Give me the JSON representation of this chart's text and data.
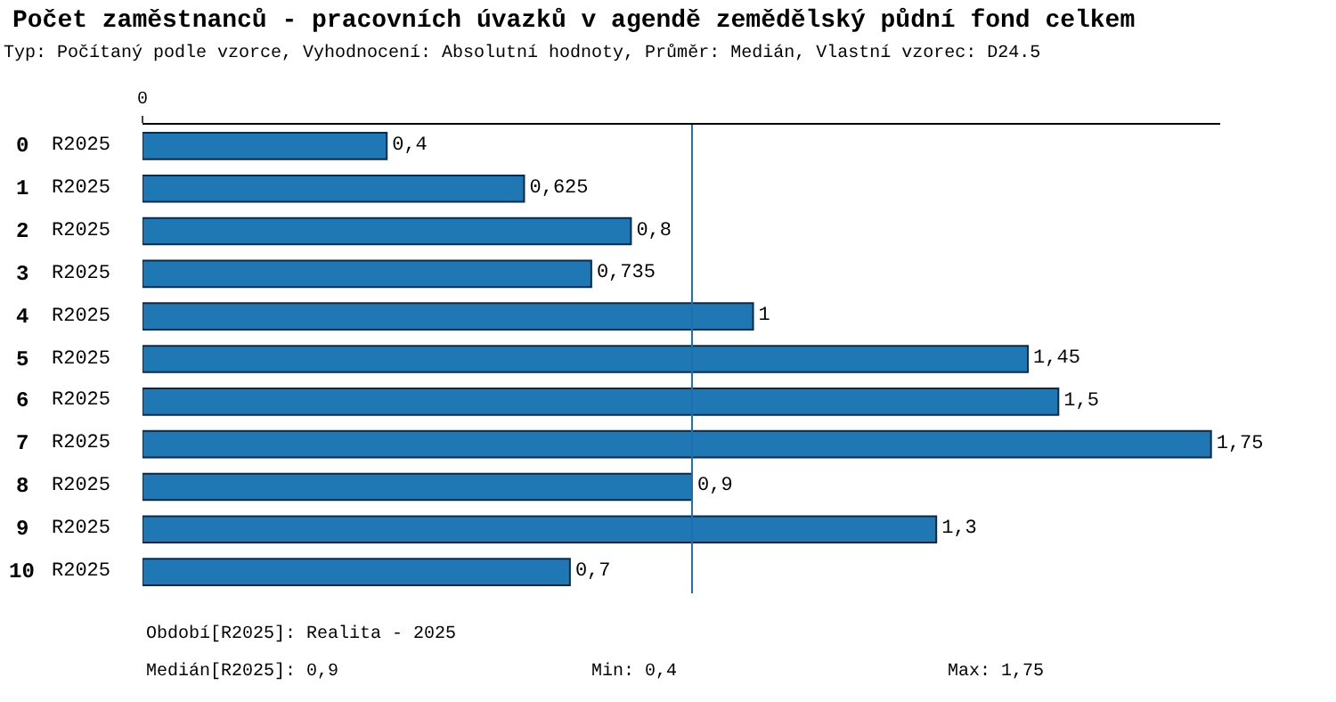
{
  "chart_data": {
    "type": "bar",
    "orientation": "horizontal",
    "title": "Počet zaměstnanců - pracovních úvazků v agendě zemědělský půdní fond celkem",
    "subtitle": "Typ: Počítaný podle vzorce, Vyhodnocení: Absolutní hodnoty, Průměr: Medián, Vlastní vzorec: D24.5",
    "categories": [
      "0",
      "1",
      "2",
      "3",
      "4",
      "5",
      "6",
      "7",
      "8",
      "9",
      "10"
    ],
    "series": [
      {
        "name": "R2025",
        "color": "#1f77b4",
        "values": [
          0.4,
          0.625,
          0.8,
          0.735,
          1,
          1.45,
          1.5,
          1.75,
          0.9,
          1.3,
          0.7
        ],
        "value_labels": [
          "0,4",
          "0,625",
          "0,8",
          "0,735",
          "1",
          "1,45",
          "1,5",
          "1,75",
          "0,9",
          "1,3",
          "0,7"
        ]
      }
    ],
    "ref_lines": [
      {
        "axis": "x",
        "value": 0.9,
        "color": "#1f6fb0"
      }
    ],
    "annotations": [
      "0",
      "Období[R2025]: Realita - 2025",
      "Medián[R2025]: 0,9",
      "Min: 0,4",
      "Max: 1,75"
    ],
    "legend": false
  }
}
